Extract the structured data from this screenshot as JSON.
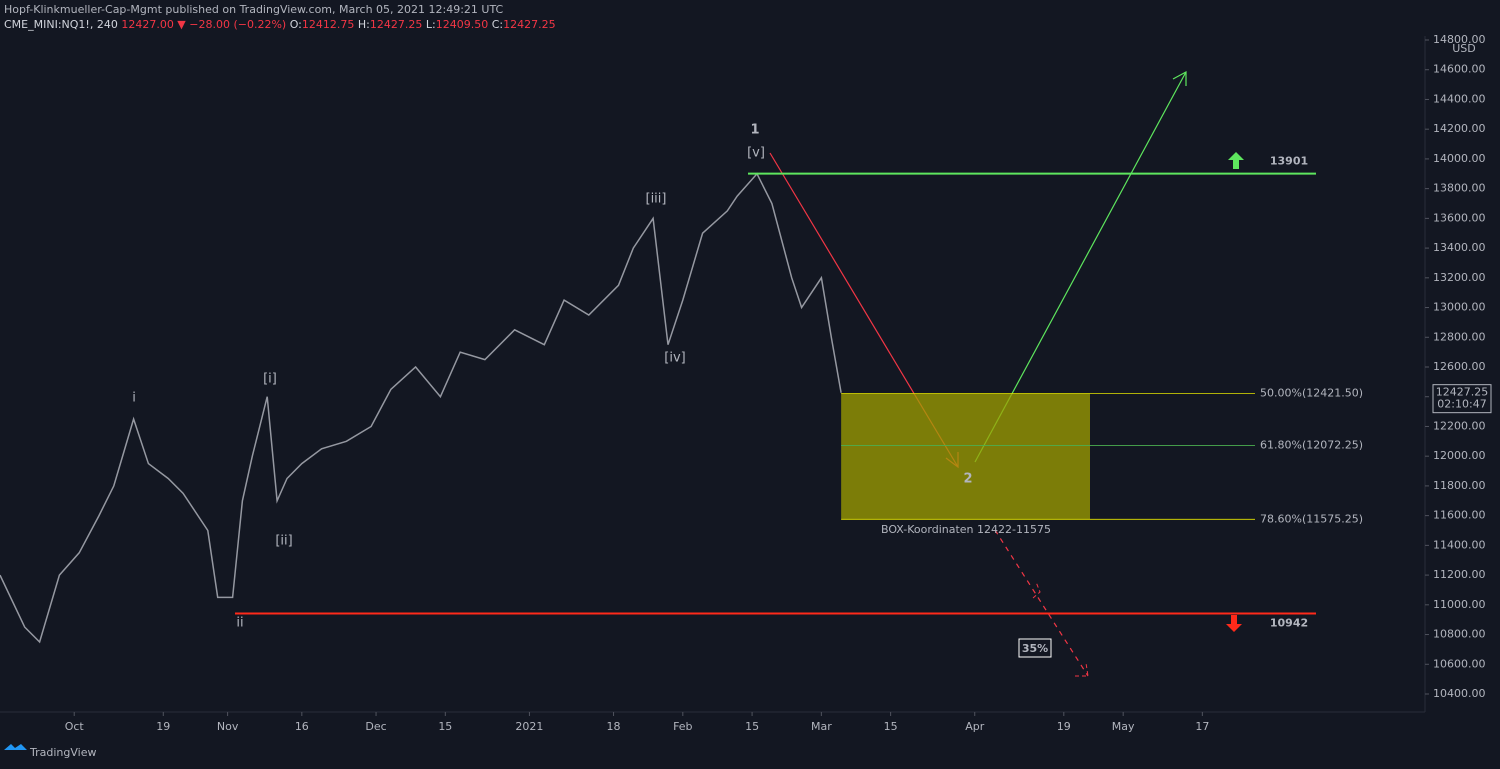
{
  "header": {
    "publisher": "Hopf-Klinkmueller-Cap-Mgmt published on TradingView.com, March 05, 2021 12:49:21 UTC",
    "symbol": "CME_MINI:NQ1!, 240",
    "change": "12427.00 ▼ −28.00 (−0.22%)",
    "ohlc": [
      {
        "key": "O:",
        "value": "12412.75"
      },
      {
        "key": "H:",
        "value": "12427.25"
      },
      {
        "key": "L:",
        "value": "12409.50"
      },
      {
        "key": "C:",
        "value": "12427.25"
      }
    ]
  },
  "chart_data": {
    "type": "line",
    "currency": "USD",
    "x": [
      "2020-09-16",
      "2020-09-21",
      "2020-09-24",
      "2020-09-28",
      "2020-10-02",
      "2020-10-06",
      "2020-10-09",
      "2020-10-13",
      "2020-10-16",
      "2020-10-20",
      "2020-10-23",
      "2020-10-28",
      "2020-10-30",
      "2020-11-02",
      "2020-11-04",
      "2020-11-06",
      "2020-11-09",
      "2020-11-11",
      "2020-11-13",
      "2020-11-16",
      "2020-11-20",
      "2020-11-25",
      "2020-11-30",
      "2020-12-04",
      "2020-12-09",
      "2020-12-14",
      "2020-12-18",
      "2020-12-23",
      "2020-12-29",
      "2021-01-04",
      "2021-01-08",
      "2021-01-13",
      "2021-01-19",
      "2021-01-22",
      "2021-01-26",
      "2021-01-29",
      "2021-02-01",
      "2021-02-05",
      "2021-02-10",
      "2021-02-12",
      "2021-02-16",
      "2021-02-19",
      "2021-02-23",
      "2021-02-25",
      "2021-03-01",
      "2021-03-03",
      "2021-03-05"
    ],
    "series": [
      {
        "name": "NQ1!",
        "color": "#9598a1",
        "values": [
          11200,
          10850,
          10750,
          11200,
          11350,
          11600,
          11800,
          12250,
          11950,
          11850,
          11750,
          11500,
          11050,
          11050,
          11700,
          12000,
          12400,
          11700,
          11850,
          11950,
          12050,
          12100,
          12200,
          12450,
          12600,
          12400,
          12700,
          12650,
          12850,
          12750,
          13050,
          12950,
          13150,
          13400,
          13600,
          12750,
          13050,
          13500,
          13650,
          13750,
          13900,
          13700,
          13200,
          13000,
          13200,
          12800,
          12427
        ]
      }
    ],
    "xlim": [
      "2020-09-16",
      "2021-07-01"
    ],
    "xticks": [
      {
        "value": "2020-10-01",
        "label": "Oct"
      },
      {
        "value": "2020-10-19",
        "label": "19"
      },
      {
        "value": "2020-11-01",
        "label": "Nov"
      },
      {
        "value": "2020-11-16",
        "label": "16"
      },
      {
        "value": "2020-12-01",
        "label": "Dec"
      },
      {
        "value": "2020-12-15",
        "label": "15"
      },
      {
        "value": "2021-01-01",
        "label": "2021"
      },
      {
        "value": "2021-01-18",
        "label": "18"
      },
      {
        "value": "2021-02-01",
        "label": "Feb"
      },
      {
        "value": "2021-02-15",
        "label": "15"
      },
      {
        "value": "2021-03-01",
        "label": "Mar"
      },
      {
        "value": "2021-03-15",
        "label": "15"
      },
      {
        "value": "2021-04-01",
        "label": "Apr"
      },
      {
        "value": "2021-04-19",
        "label": "19"
      },
      {
        "value": "2021-05-01",
        "label": "May"
      },
      {
        "value": "2021-05-17",
        "label": "17"
      }
    ],
    "ylim": [
      10400,
      14800
    ],
    "yticks": [
      {
        "value": 10400,
        "label": "10400.00"
      },
      {
        "value": 10600,
        "label": "10600.00"
      },
      {
        "value": 10800,
        "label": "10800.00"
      },
      {
        "value": 11000,
        "label": "11000.00"
      },
      {
        "value": 11200,
        "label": "11200.00"
      },
      {
        "value": 11400,
        "label": "11400.00"
      },
      {
        "value": 11600,
        "label": "11600.00"
      },
      {
        "value": 11800,
        "label": "11800.00"
      },
      {
        "value": 12000,
        "label": "12000.00"
      },
      {
        "value": 12200,
        "label": "12200.00"
      },
      {
        "value": 12400,
        "label": "12400.00"
      },
      {
        "value": 12600,
        "label": "12600.00"
      },
      {
        "value": 12800,
        "label": "12800.00"
      },
      {
        "value": 13000,
        "label": "13000.00"
      },
      {
        "value": 13200,
        "label": "13200.00"
      },
      {
        "value": 13400,
        "label": "13400.00"
      },
      {
        "value": 13600,
        "label": "13600.00"
      },
      {
        "value": 13800,
        "label": "13800.00"
      },
      {
        "value": 14000,
        "label": "14000.00"
      },
      {
        "value": 14200,
        "label": "14200.00"
      },
      {
        "value": 14400,
        "label": "14400.00"
      },
      {
        "value": 14600,
        "label": "14600.00"
      },
      {
        "value": 14800,
        "label": "14800.00"
      }
    ],
    "last_price": 12427.25,
    "countdown": "02:10:47",
    "levels": [
      {
        "value": 13901,
        "color": "#5ee65e"
      },
      {
        "value": 10942,
        "color": "#ff2a1a"
      }
    ],
    "fib_levels": [
      {
        "value": 12421.5,
        "label": "50.00%(12421.50)",
        "color": "#e6e600"
      },
      {
        "value": 12072.25,
        "label": "61.80%(12072.25)",
        "color": "#4caf50"
      },
      {
        "value": 11575.25,
        "label": "78.60%(11575.25)",
        "color": "#e6e600"
      }
    ],
    "annotations": [
      "1",
      "[v]",
      "[iii]",
      "[iv]",
      "[i]",
      "[ii]",
      "i",
      "ii",
      "2",
      "BOX-Koordinaten 12422-11575",
      "35%"
    ]
  },
  "footer": {
    "brand": "TradingView"
  }
}
